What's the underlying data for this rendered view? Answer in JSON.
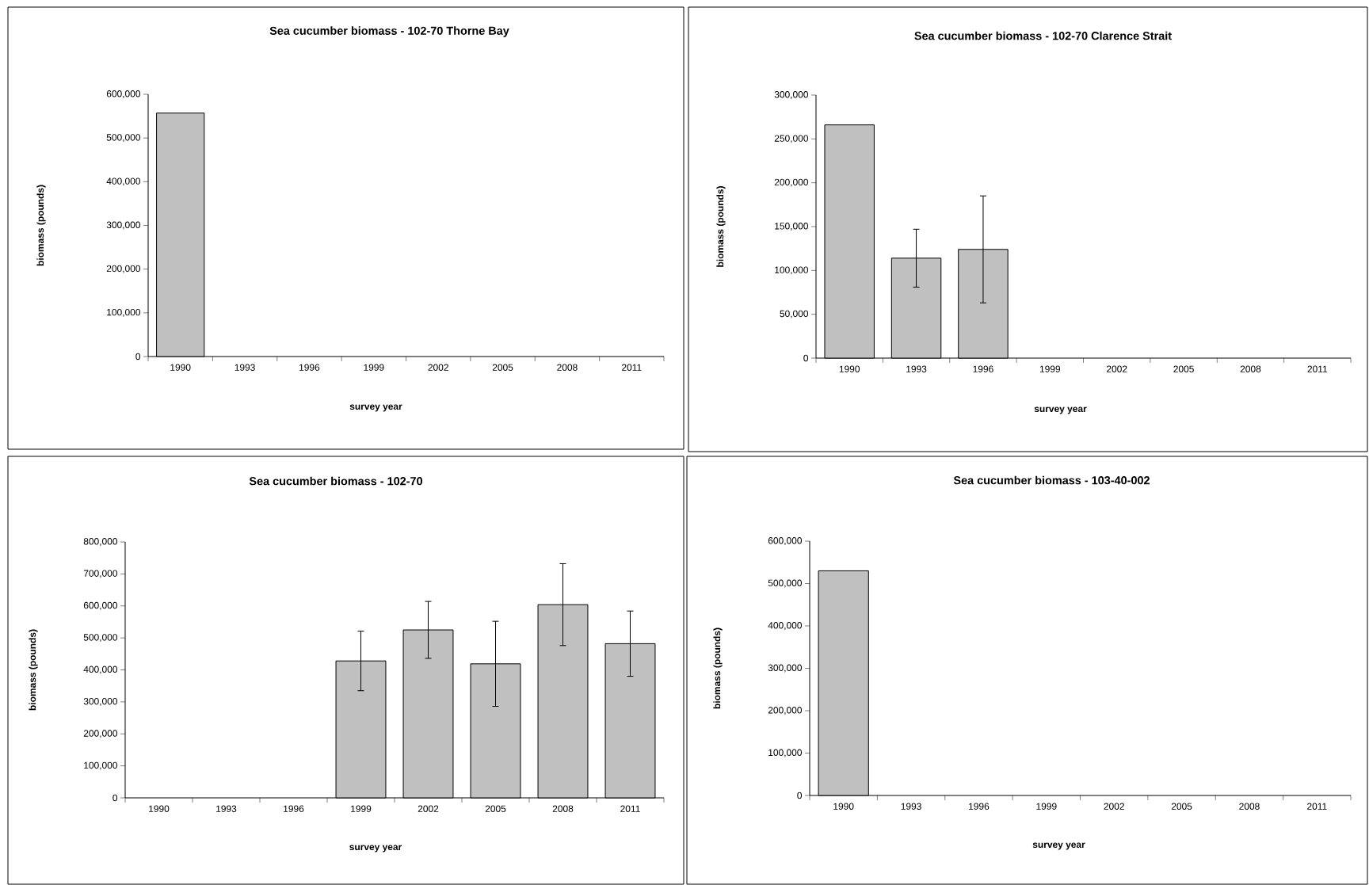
{
  "chart_data": [
    {
      "type": "bar",
      "title": "Sea cucumber biomass - 102-70 Thorne Bay",
      "xlabel": "survey year",
      "ylabel": "biomass (pounds)",
      "color": "#c0c0c0",
      "categories": [
        "1990",
        "1993",
        "1996",
        "1999",
        "2002",
        "2005",
        "2008",
        "2011"
      ],
      "values": [
        557000,
        null,
        null,
        null,
        null,
        null,
        null,
        null
      ],
      "ylim": [
        0,
        600000
      ],
      "yticks": [
        0,
        {
          "value": 100000,
          "label": "100,000"
        },
        {
          "value": 200000,
          "label": "200,000"
        },
        {
          "value": 300000,
          "label": "300,000"
        },
        {
          "value": 400000,
          "label": "400,000"
        },
        {
          "value": 500000,
          "label": "500,000"
        },
        {
          "value": 600000,
          "label": "600,000"
        }
      ]
    },
    {
      "type": "bar",
      "title": "Sea cucumber biomass - 102-70 Clarence Strait",
      "xlabel": "survey year",
      "ylabel": "biomass (pounds)",
      "color": "#c0c0c0",
      "categories": [
        "1990",
        "1993",
        "1996",
        "1999",
        "2002",
        "2005",
        "2008",
        "2011"
      ],
      "values": [
        266000,
        114000,
        124000,
        null,
        null,
        null,
        null,
        null
      ],
      "errors": [
        null,
        33000,
        61000,
        null,
        null,
        null,
        null,
        null
      ],
      "ylim": [
        0,
        300000
      ],
      "yticks": [
        0,
        {
          "value": 50000,
          "label": "50,000"
        },
        {
          "value": 100000,
          "label": "100,000"
        },
        {
          "value": 150000,
          "label": "150,000"
        },
        {
          "value": 200000,
          "label": "200,000"
        },
        {
          "value": 250000,
          "label": "250,000"
        },
        {
          "value": 300000,
          "label": "300,000"
        }
      ]
    },
    {
      "type": "bar",
      "title": "Sea cucumber biomass - 102-70",
      "xlabel": "survey year",
      "ylabel": "biomass (pounds)",
      "color": "#c0c0c0",
      "categories": [
        "1990",
        "1993",
        "1996",
        "1999",
        "2002",
        "2005",
        "2008",
        "2011"
      ],
      "values": [
        null,
        null,
        null,
        428000,
        525000,
        419000,
        604000,
        482000
      ],
      "errors": [
        null,
        null,
        null,
        93000,
        89000,
        133000,
        128000,
        102000
      ],
      "ylim": [
        0,
        800000
      ],
      "yticks": [
        0,
        {
          "value": 100000,
          "label": "100,000"
        },
        {
          "value": 200000,
          "label": "200,000"
        },
        {
          "value": 300000,
          "label": "300,000"
        },
        {
          "value": 400000,
          "label": "400,000"
        },
        {
          "value": 500000,
          "label": "500,000"
        },
        {
          "value": 600000,
          "label": "600,000"
        },
        {
          "value": 700000,
          "label": "700,000"
        },
        {
          "value": 800000,
          "label": "800,000"
        }
      ]
    },
    {
      "type": "bar",
      "title": "Sea cucumber biomass - 103-40-002",
      "xlabel": "survey year",
      "ylabel": "biomass (pounds)",
      "color": "#c0c0c0",
      "categories": [
        "1990",
        "1993",
        "1996",
        "1999",
        "2002",
        "2005",
        "2008",
        "2011"
      ],
      "values": [
        530000,
        null,
        null,
        null,
        null,
        null,
        null,
        null
      ],
      "ylim": [
        0,
        600000
      ],
      "yticks": [
        0,
        {
          "value": 100000,
          "label": "100,000"
        },
        {
          "value": 200000,
          "label": "200,000"
        },
        {
          "value": 300000,
          "label": "300,000"
        },
        {
          "value": 400000,
          "label": "400,000"
        },
        {
          "value": 500000,
          "label": "500,000"
        },
        {
          "value": 600000,
          "label": "600,000"
        }
      ]
    }
  ]
}
